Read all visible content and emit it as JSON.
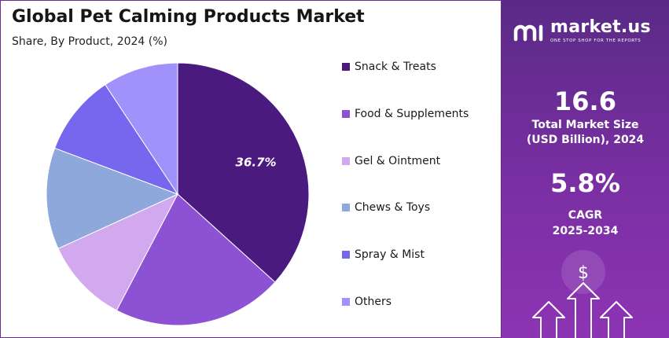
{
  "colors": {
    "accent": "#6a2c91",
    "panel_top": "#5a2a86",
    "panel_bottom": "#8d34b4"
  },
  "chart_data": {
    "type": "pie",
    "title": "Global Pet Calming Products Market",
    "subtitle": "Share, By Product, 2024 (%)",
    "categories": [
      "Snack & Treats",
      "Food & Supplements",
      "Gel & Ointment",
      "Chews & Toys",
      "Spray & Mist",
      "Others"
    ],
    "values": [
      36.7,
      21.0,
      10.5,
      12.5,
      10.0,
      9.3
    ],
    "data_labels": [
      "36.7%",
      "",
      "",
      "",
      "",
      ""
    ],
    "colors": [
      "#4b1a7e",
      "#8c52d3",
      "#d2a8ef",
      "#8ea8db",
      "#7766ee",
      "#a191fb"
    ],
    "start_angle_deg": 0,
    "direction": "clockwise",
    "legend": "right"
  },
  "brand": {
    "icon": "market-us-logo-icon",
    "name": "market.us",
    "tagline": "ONE STOP SHOP FOR THE REPORTS"
  },
  "stats": {
    "market_size": "16.6",
    "market_size_label_1": "Total Market Size",
    "market_size_label_2": "(USD Billion), 2024",
    "cagr": "5.8%",
    "cagr_label_1": "CAGR",
    "cagr_label_2": "2025-2034"
  },
  "decoration": {
    "icons": [
      "dollar-icon",
      "growth-arrow-icon"
    ],
    "dollar": "$"
  }
}
